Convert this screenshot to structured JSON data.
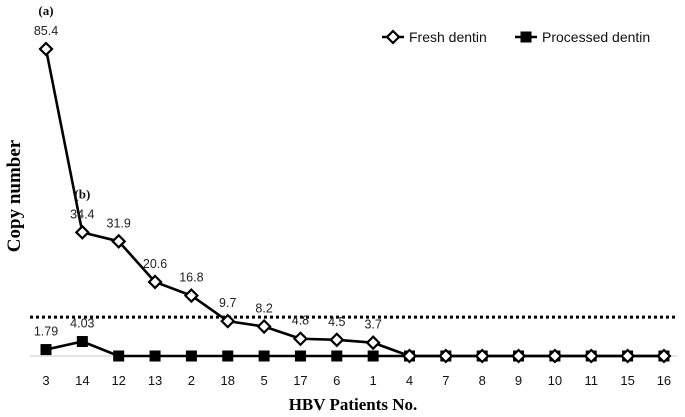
{
  "chart_data": {
    "type": "line",
    "xlabel": "HBV Patients No.",
    "ylabel": "Copy number",
    "categories": [
      "3",
      "14",
      "12",
      "13",
      "2",
      "18",
      "5",
      "17",
      "6",
      "1",
      "4",
      "7",
      "8",
      "9",
      "10",
      "11",
      "15",
      "16"
    ],
    "series": [
      {
        "name": "Fresh dentin",
        "marker": "diamond-open",
        "color": "#000000",
        "values": [
          85.4,
          34.4,
          31.9,
          20.6,
          16.8,
          9.7,
          8.2,
          4.8,
          4.5,
          3.7,
          0,
          0,
          0,
          0,
          0,
          0,
          0,
          0
        ],
        "labels": [
          "85.4",
          "34.4",
          "31.9",
          "20.6",
          "16.8",
          "9.7",
          "8.2",
          "4.8",
          "4.5",
          "3.7",
          "",
          "",
          "",
          "",
          "",
          "",
          "",
          ""
        ]
      },
      {
        "name": "Processed dentin",
        "marker": "square-filled",
        "color": "#000000",
        "values": [
          1.79,
          4.03,
          0,
          0,
          0,
          0,
          0,
          0,
          0,
          0,
          0,
          0,
          0,
          0,
          0,
          0,
          0,
          0
        ],
        "labels": [
          "1.79",
          "4.03",
          "",
          "",
          "",
          "",
          "",
          "",
          "",
          "",
          "",
          "",
          "",
          "",
          "",
          "",
          "",
          ""
        ]
      }
    ],
    "threshold": 10.8,
    "ylim": [
      0,
      90
    ],
    "grid": false,
    "legend": "top-right",
    "annotations": [
      {
        "text": "(a)",
        "category": "3",
        "value": 85.4
      },
      {
        "text": "(b)",
        "category": "14",
        "value": 34.4
      }
    ]
  }
}
